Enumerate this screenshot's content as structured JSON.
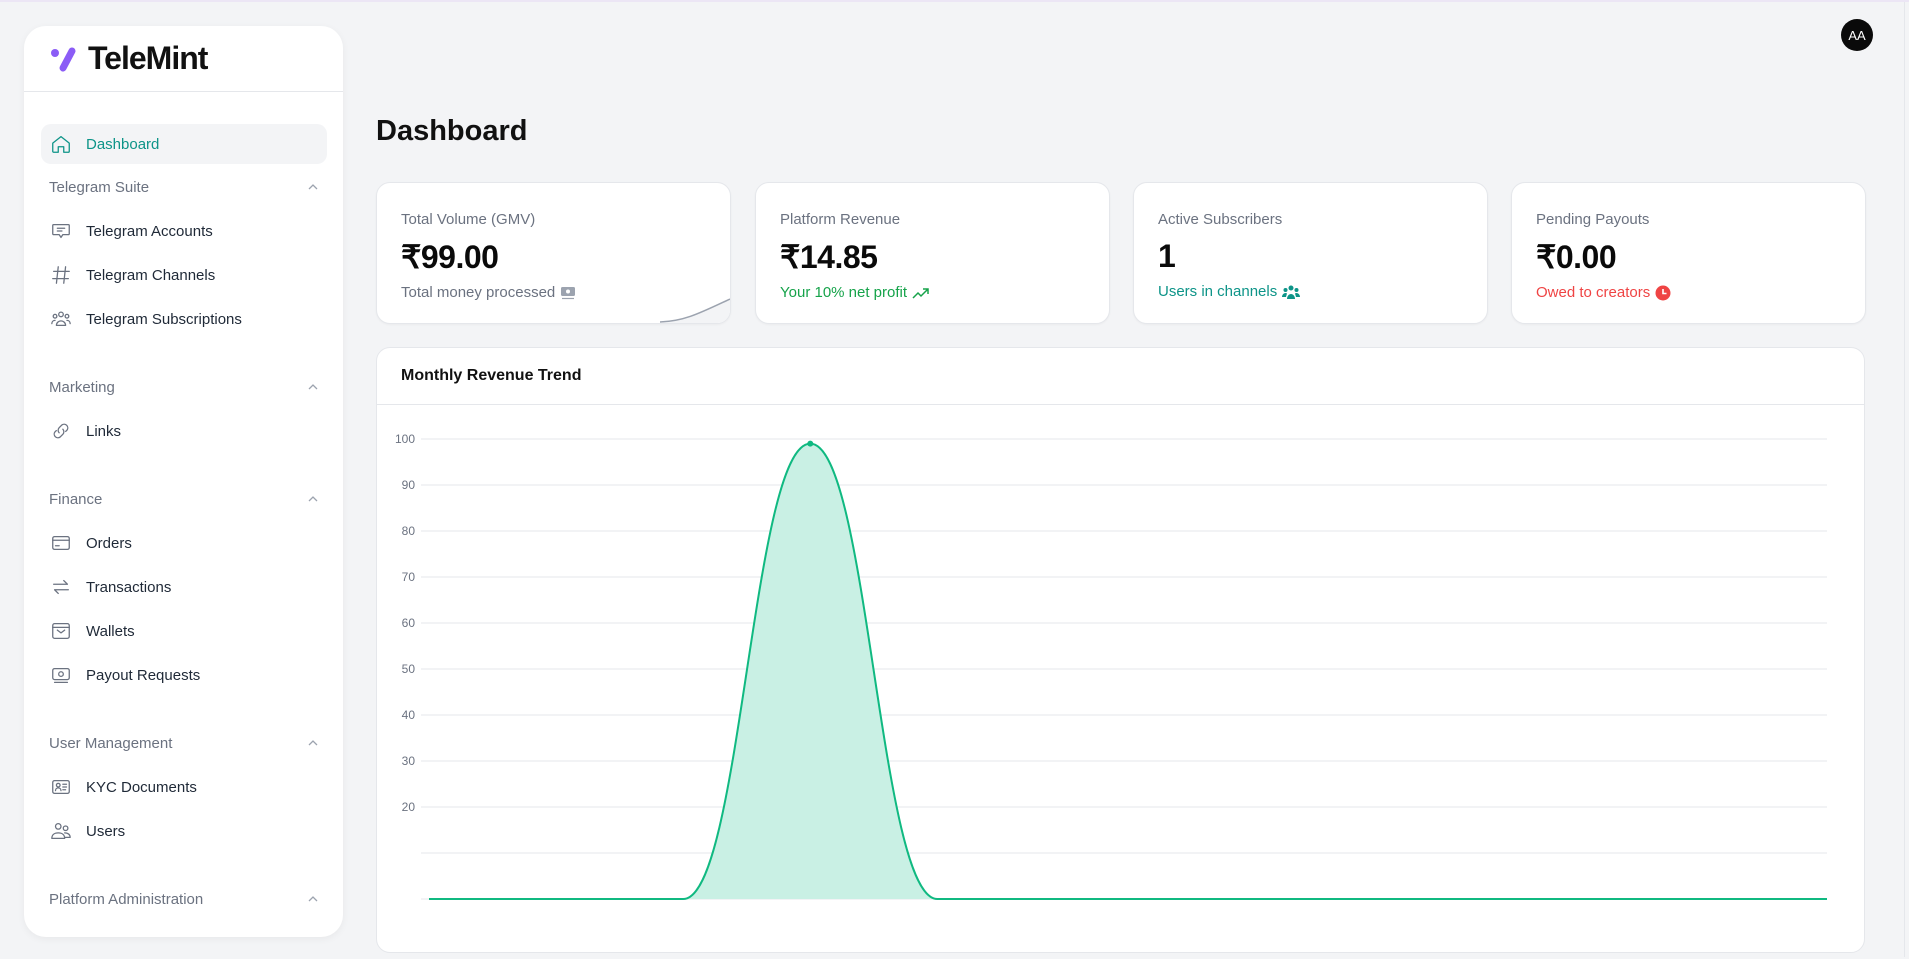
{
  "brand": {
    "name": "TeleMint",
    "accent": "#8b5cf6"
  },
  "user": {
    "initials": "AA"
  },
  "sidebar": {
    "dashboard": {
      "label": "Dashboard",
      "icon": "home-icon"
    },
    "sections": [
      {
        "title": "Telegram Suite",
        "items": [
          {
            "label": "Telegram Accounts",
            "icon": "chat-icon"
          },
          {
            "label": "Telegram Channels",
            "icon": "hash-icon"
          },
          {
            "label": "Telegram Subscriptions",
            "icon": "group-icon"
          }
        ]
      },
      {
        "title": "Marketing",
        "items": [
          {
            "label": "Links",
            "icon": "link-icon"
          }
        ]
      },
      {
        "title": "Finance",
        "items": [
          {
            "label": "Orders",
            "icon": "credit-card-icon"
          },
          {
            "label": "Transactions",
            "icon": "arrows-exchange-icon"
          },
          {
            "label": "Wallets",
            "icon": "wallet-icon"
          },
          {
            "label": "Payout Requests",
            "icon": "cash-icon"
          }
        ]
      },
      {
        "title": "User Management",
        "items": [
          {
            "label": "KYC Documents",
            "icon": "id-card-icon"
          },
          {
            "label": "Users",
            "icon": "users-icon"
          }
        ]
      },
      {
        "title": "Platform Administration",
        "items": []
      }
    ]
  },
  "page": {
    "title": "Dashboard"
  },
  "cards": [
    {
      "label": "Total Volume (GMV)",
      "value": "₹99.00",
      "sub": "Total money processed",
      "sub_color": "#6b7280",
      "icon": "banknote-icon"
    },
    {
      "label": "Platform Revenue",
      "value": "₹14.85",
      "sub": "Your 10% net profit",
      "sub_color": "#16a34a",
      "icon": "trending-up-icon"
    },
    {
      "label": "Active Subscribers",
      "value": "1",
      "sub": "Users in channels",
      "sub_color": "#0d9488",
      "icon": "users-group-icon"
    },
    {
      "label": "Pending Payouts",
      "value": "₹0.00",
      "sub": "Owed to creators",
      "sub_color": "#ef4444",
      "icon": "clock-icon"
    }
  ],
  "chart_data": {
    "type": "area",
    "title": "Monthly Revenue Trend",
    "values": [
      0,
      0,
      0,
      99,
      0,
      0,
      0,
      0,
      0,
      0,
      0,
      0
    ],
    "yticks": [
      100,
      90,
      80,
      70,
      60,
      50,
      40,
      30,
      20
    ],
    "ylim": [
      0,
      100
    ],
    "grid": true,
    "line_color": "#10b981",
    "fill_color": "#c9f0e4"
  }
}
